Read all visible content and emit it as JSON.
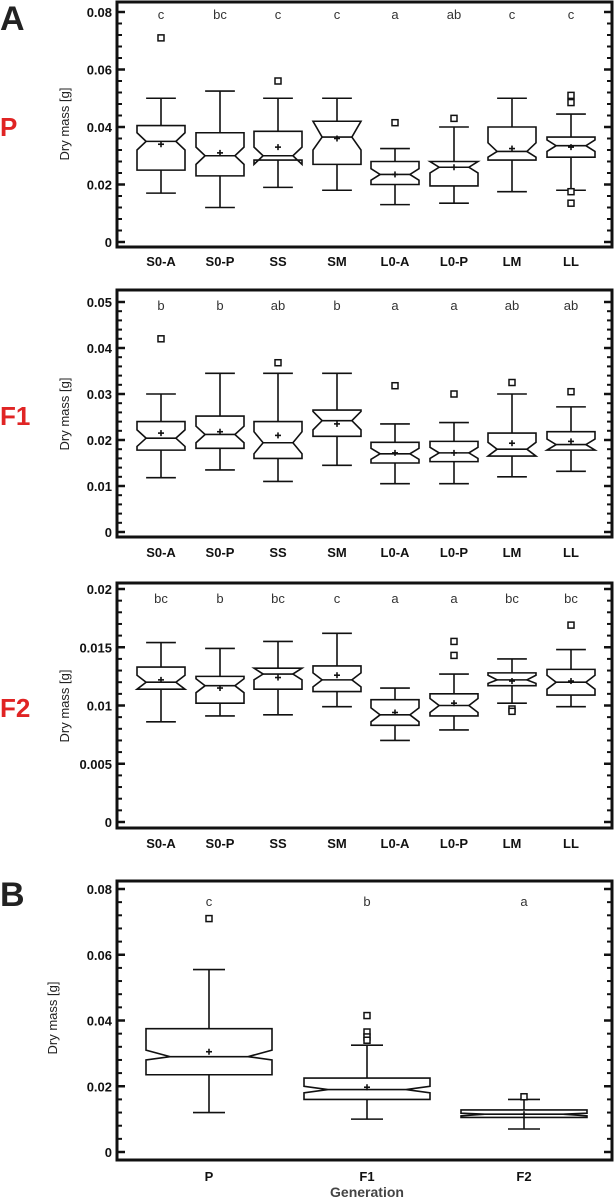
{
  "figure": {
    "panel_letters": [
      "A",
      "B"
    ],
    "y_axis_label": "Dry mass [g]",
    "x_axis_label_B": "Generation",
    "colors": {
      "generation_label": "#e02424",
      "frame": "#111111",
      "panel_letter": "#222222"
    }
  },
  "chart_data": [
    {
      "type": "box",
      "panel": "A",
      "generation": "P",
      "title": "",
      "ylabel": "Dry mass [g]",
      "xlabel": "",
      "ylim": [
        0,
        0.08
      ],
      "yticks": [
        0,
        0.02,
        0.04,
        0.06,
        0.08
      ],
      "ytick_labels": [
        "0",
        "0.02",
        "0.04",
        "0.06",
        "0.08"
      ],
      "categories": [
        "S0-A",
        "S0-P",
        "SS",
        "SM",
        "L0-A",
        "L0-P",
        "LM",
        "LL"
      ],
      "significance": [
        "c",
        "bc",
        "c",
        "c",
        "a",
        "ab",
        "c",
        "c"
      ],
      "boxes": [
        {
          "whisker_low": 0.017,
          "q1": 0.025,
          "median": 0.035,
          "q3": 0.0405,
          "whisker_high": 0.05,
          "mean": 0.034,
          "notch": [
            0.032,
            0.038
          ],
          "outliers": [
            0.071
          ]
        },
        {
          "whisker_low": 0.012,
          "q1": 0.023,
          "median": 0.03,
          "q3": 0.038,
          "whisker_high": 0.0525,
          "mean": 0.031,
          "notch": [
            0.027,
            0.033
          ],
          "outliers": []
        },
        {
          "whisker_low": 0.019,
          "q1": 0.0285,
          "median": 0.03,
          "q3": 0.0385,
          "whisker_high": 0.05,
          "mean": 0.033,
          "notch": [
            0.027,
            0.033
          ],
          "outliers": [
            0.056
          ]
        },
        {
          "whisker_low": 0.018,
          "q1": 0.027,
          "median": 0.0365,
          "q3": 0.042,
          "whisker_high": 0.05,
          "mean": 0.036,
          "notch": [
            0.032,
            0.042
          ],
          "outliers": []
        },
        {
          "whisker_low": 0.013,
          "q1": 0.02,
          "median": 0.0235,
          "q3": 0.028,
          "whisker_high": 0.0325,
          "mean": 0.0235,
          "notch": [
            0.0215,
            0.0255
          ],
          "outliers": [
            0.0415
          ]
        },
        {
          "whisker_low": 0.0135,
          "q1": 0.0195,
          "median": 0.026,
          "q3": 0.028,
          "whisker_high": 0.04,
          "mean": 0.026,
          "notch": [
            0.024,
            0.028
          ],
          "outliers": [
            0.043
          ]
        },
        {
          "whisker_low": 0.0175,
          "q1": 0.0285,
          "median": 0.0315,
          "q3": 0.04,
          "whisker_high": 0.05,
          "mean": 0.0325,
          "notch": [
            0.0295,
            0.0345
          ],
          "outliers": []
        },
        {
          "whisker_low": 0.018,
          "q1": 0.0295,
          "median": 0.0335,
          "q3": 0.0365,
          "whisker_high": 0.0445,
          "mean": 0.033,
          "notch": [
            0.0315,
            0.0355
          ],
          "outliers": [
            0.051,
            0.0485,
            0.0175,
            0.0135
          ]
        }
      ]
    },
    {
      "type": "box",
      "panel": "A",
      "generation": "F1",
      "title": "",
      "ylabel": "Dry mass [g]",
      "xlabel": "",
      "ylim": [
        0,
        0.05
      ],
      "yticks": [
        0,
        0.01,
        0.02,
        0.03,
        0.04,
        0.05
      ],
      "ytick_labels": [
        "0",
        "0.01",
        "0.02",
        "0.03",
        "0.04",
        "0.05"
      ],
      "categories": [
        "S0-A",
        "S0-P",
        "SS",
        "SM",
        "L0-A",
        "L0-P",
        "LM",
        "LL"
      ],
      "significance": [
        "b",
        "b",
        "ab",
        "b",
        "a",
        "a",
        "ab",
        "ab"
      ],
      "boxes": [
        {
          "whisker_low": 0.0118,
          "q1": 0.0178,
          "median": 0.0204,
          "q3": 0.024,
          "whisker_high": 0.03,
          "mean": 0.0215,
          "notch": [
            0.0186,
            0.0222
          ],
          "outliers": [
            0.042
          ]
        },
        {
          "whisker_low": 0.0135,
          "q1": 0.0182,
          "median": 0.0212,
          "q3": 0.0252,
          "whisker_high": 0.0345,
          "mean": 0.0218,
          "notch": [
            0.0194,
            0.023
          ],
          "outliers": []
        },
        {
          "whisker_low": 0.011,
          "q1": 0.016,
          "median": 0.0194,
          "q3": 0.024,
          "whisker_high": 0.0345,
          "mean": 0.021,
          "notch": [
            0.017,
            0.0218
          ],
          "outliers": [
            0.0368
          ]
        },
        {
          "whisker_low": 0.0145,
          "q1": 0.0208,
          "median": 0.0242,
          "q3": 0.0265,
          "whisker_high": 0.0345,
          "mean": 0.0235,
          "notch": [
            0.0222,
            0.0262
          ],
          "outliers": []
        },
        {
          "whisker_low": 0.0105,
          "q1": 0.015,
          "median": 0.017,
          "q3": 0.0195,
          "whisker_high": 0.0235,
          "mean": 0.0172,
          "notch": [
            0.0158,
            0.0182
          ],
          "outliers": [
            0.0318
          ]
        },
        {
          "whisker_low": 0.0105,
          "q1": 0.0153,
          "median": 0.0172,
          "q3": 0.0197,
          "whisker_high": 0.0238,
          "mean": 0.0172,
          "notch": [
            0.016,
            0.0184
          ],
          "outliers": [
            0.03
          ]
        },
        {
          "whisker_low": 0.012,
          "q1": 0.0165,
          "median": 0.018,
          "q3": 0.0215,
          "whisker_high": 0.03,
          "mean": 0.0193,
          "notch": [
            0.0165,
            0.0195
          ],
          "outliers": [
            0.0325
          ]
        },
        {
          "whisker_low": 0.0132,
          "q1": 0.0178,
          "median": 0.019,
          "q3": 0.0218,
          "whisker_high": 0.0272,
          "mean": 0.0197,
          "notch": [
            0.0178,
            0.0202
          ],
          "outliers": [
            0.0305
          ]
        }
      ]
    },
    {
      "type": "box",
      "panel": "A",
      "generation": "F2",
      "title": "",
      "ylabel": "Dry mass [g]",
      "xlabel": "",
      "ylim": [
        0,
        0.02
      ],
      "yticks": [
        0,
        0.005,
        0.01,
        0.015,
        0.02
      ],
      "ytick_labels": [
        "0",
        "0.005",
        "0.01",
        "0.015",
        "0.02"
      ],
      "categories": [
        "S0-A",
        "S0-P",
        "SS",
        "SM",
        "L0-A",
        "L0-P",
        "LM",
        "LL"
      ],
      "significance": [
        "bc",
        "b",
        "bc",
        "c",
        "a",
        "a",
        "bc",
        "bc"
      ],
      "boxes": [
        {
          "whisker_low": 0.0086,
          "q1": 0.0114,
          "median": 0.012,
          "q3": 0.0133,
          "whisker_high": 0.0154,
          "mean": 0.0122,
          "notch": [
            0.0114,
            0.0126
          ],
          "outliers": []
        },
        {
          "whisker_low": 0.0091,
          "q1": 0.0102,
          "median": 0.0117,
          "q3": 0.0125,
          "whisker_high": 0.0149,
          "mean": 0.0115,
          "notch": [
            0.0111,
            0.0123
          ],
          "outliers": []
        },
        {
          "whisker_low": 0.0092,
          "q1": 0.0114,
          "median": 0.0127,
          "q3": 0.0132,
          "whisker_high": 0.0155,
          "mean": 0.0124,
          "notch": [
            0.0122,
            0.0132
          ],
          "outliers": []
        },
        {
          "whisker_low": 0.0099,
          "q1": 0.0112,
          "median": 0.0122,
          "q3": 0.0134,
          "whisker_high": 0.0162,
          "mean": 0.0126,
          "notch": [
            0.0116,
            0.0128
          ],
          "outliers": []
        },
        {
          "whisker_low": 0.007,
          "q1": 0.0083,
          "median": 0.0092,
          "q3": 0.0105,
          "whisker_high": 0.0115,
          "mean": 0.0094,
          "notch": [
            0.0086,
            0.0098
          ],
          "outliers": []
        },
        {
          "whisker_low": 0.0079,
          "q1": 0.0091,
          "median": 0.01,
          "q3": 0.011,
          "whisker_high": 0.0127,
          "mean": 0.0102,
          "notch": [
            0.0094,
            0.0106
          ],
          "outliers": [
            0.0155,
            0.0143
          ]
        },
        {
          "whisker_low": 0.0102,
          "q1": 0.0117,
          "median": 0.0122,
          "q3": 0.0128,
          "whisker_high": 0.014,
          "mean": 0.0121,
          "notch": [
            0.0119,
            0.0126
          ],
          "outliers": [
            0.0097,
            0.0095
          ]
        },
        {
          "whisker_low": 0.0099,
          "q1": 0.0109,
          "median": 0.012,
          "q3": 0.0131,
          "whisker_high": 0.0148,
          "mean": 0.0121,
          "notch": [
            0.0114,
            0.0126
          ],
          "outliers": [
            0.0169
          ]
        }
      ]
    },
    {
      "type": "box",
      "panel": "B",
      "generation": "",
      "title": "",
      "ylabel": "Dry mass [g]",
      "xlabel": "Generation",
      "ylim": [
        0,
        0.08
      ],
      "yticks": [
        0,
        0.02,
        0.04,
        0.06,
        0.08
      ],
      "ytick_labels": [
        "0",
        "0.02",
        "0.04",
        "0.06",
        "0.08"
      ],
      "categories": [
        "P",
        "F1",
        "F2"
      ],
      "significance": [
        "c",
        "b",
        "a"
      ],
      "boxes": [
        {
          "whisker_low": 0.012,
          "q1": 0.0235,
          "median": 0.029,
          "q3": 0.0375,
          "whisker_high": 0.0555,
          "mean": 0.0305,
          "notch": [
            0.028,
            0.031
          ],
          "outliers": [
            0.071
          ]
        },
        {
          "whisker_low": 0.01,
          "q1": 0.016,
          "median": 0.019,
          "q3": 0.0225,
          "whisker_high": 0.0325,
          "mean": 0.0197,
          "notch": [
            0.018,
            0.02
          ],
          "outliers": [
            0.0415,
            0.0365,
            0.035,
            0.034
          ]
        },
        {
          "whisker_low": 0.007,
          "q1": 0.0105,
          "median": 0.0115,
          "q3": 0.0128,
          "whisker_high": 0.016,
          "mean": 0.0115,
          "notch": [
            0.011,
            0.0118
          ],
          "outliers": [
            0.0168
          ]
        }
      ]
    }
  ]
}
